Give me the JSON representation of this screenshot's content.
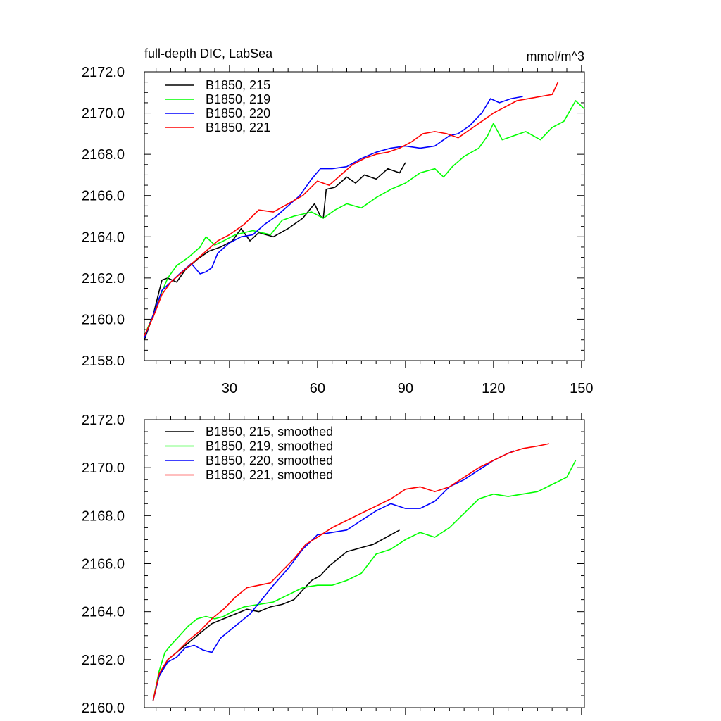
{
  "chart_data": [
    {
      "type": "line",
      "title": "full-depth DIC, LabSea",
      "units": "mmol/m^3",
      "xlim": [
        1,
        151
      ],
      "ylim": [
        2158,
        2172
      ],
      "x_ticks": [
        30,
        60,
        90,
        120,
        150
      ],
      "x_tick_labels": [
        "30",
        "60",
        "90",
        "120",
        "150"
      ],
      "y_ticks": [
        2158,
        2160,
        2162,
        2164,
        2166,
        2168,
        2170,
        2172
      ],
      "y_tick_labels": [
        "2158.0",
        "2160.0",
        "2162.0",
        "2164.0",
        "2166.0",
        "2168.0",
        "2170.0",
        "2172.0"
      ],
      "legend_position": "top-left",
      "series": [
        {
          "name": "B1850, 215",
          "color": "#000000",
          "x": [
            1,
            4,
            7,
            9,
            12,
            15,
            19,
            23,
            27,
            31,
            34,
            37,
            40,
            45,
            50,
            55,
            59,
            61,
            62,
            63,
            66,
            70,
            73,
            76,
            80,
            84,
            88,
            90
          ],
          "y": [
            2159.0,
            2160.2,
            2161.9,
            2162.0,
            2161.8,
            2162.4,
            2162.9,
            2163.3,
            2163.5,
            2163.8,
            2164.4,
            2163.8,
            2164.2,
            2164.0,
            2164.4,
            2164.9,
            2165.6,
            2165.0,
            2164.9,
            2166.3,
            2166.4,
            2166.9,
            2166.6,
            2167.0,
            2166.8,
            2167.3,
            2167.1,
            2167.6
          ]
        },
        {
          "name": "B1850, 219",
          "color": "#00ff00",
          "x": [
            1,
            4,
            6,
            9,
            12,
            16,
            20,
            22,
            25,
            28,
            32,
            38,
            44,
            48,
            52,
            58,
            62,
            66,
            70,
            75,
            80,
            85,
            90,
            95,
            100,
            103,
            106,
            110,
            115,
            118,
            120,
            123,
            127,
            131,
            136,
            140,
            144,
            148,
            151
          ],
          "y": [
            2159.2,
            2160.2,
            2161.0,
            2162.0,
            2162.6,
            2163.0,
            2163.5,
            2164.0,
            2163.6,
            2163.8,
            2164.1,
            2164.3,
            2164.1,
            2164.8,
            2165.0,
            2165.2,
            2164.9,
            2165.3,
            2165.6,
            2165.4,
            2165.9,
            2166.3,
            2166.6,
            2167.1,
            2167.3,
            2166.9,
            2167.4,
            2167.9,
            2168.3,
            2168.9,
            2169.5,
            2168.7,
            2168.9,
            2169.1,
            2168.7,
            2169.3,
            2169.6,
            2170.6,
            2170.2
          ]
        },
        {
          "name": "B1850, 220",
          "color": "#0000ff",
          "x": [
            1,
            4,
            7,
            10,
            13,
            17,
            20,
            22,
            24,
            26,
            30,
            34,
            38,
            42,
            46,
            50,
            54,
            58,
            61,
            65,
            70,
            75,
            80,
            85,
            90,
            95,
            100,
            105,
            108,
            112,
            116,
            119,
            122,
            126,
            130
          ],
          "y": [
            2159.1,
            2160.2,
            2161.4,
            2161.8,
            2162.2,
            2162.7,
            2162.2,
            2162.3,
            2162.5,
            2163.2,
            2163.7,
            2164.0,
            2164.1,
            2164.6,
            2165.0,
            2165.5,
            2166.0,
            2166.8,
            2167.3,
            2167.3,
            2167.4,
            2167.8,
            2168.1,
            2168.3,
            2168.4,
            2168.3,
            2168.4,
            2168.9,
            2169.0,
            2169.4,
            2170.0,
            2170.7,
            2170.5,
            2170.7,
            2170.8
          ]
        },
        {
          "name": "B1850, 221",
          "color": "#ff0000",
          "x": [
            1,
            4,
            7,
            10,
            14,
            18,
            22,
            26,
            30,
            35,
            40,
            45,
            50,
            55,
            60,
            64,
            68,
            72,
            76,
            80,
            84,
            88,
            92,
            96,
            100,
            104,
            108,
            112,
            116,
            120,
            124,
            128,
            132,
            136,
            140,
            142
          ],
          "y": [
            2159.2,
            2160.1,
            2161.2,
            2161.8,
            2162.3,
            2162.8,
            2163.3,
            2163.8,
            2164.1,
            2164.6,
            2165.3,
            2165.2,
            2165.6,
            2166.0,
            2166.7,
            2166.5,
            2167.0,
            2167.5,
            2167.8,
            2168.0,
            2168.1,
            2168.3,
            2168.6,
            2169.0,
            2169.1,
            2169.0,
            2168.8,
            2169.2,
            2169.6,
            2170.0,
            2170.3,
            2170.6,
            2170.7,
            2170.8,
            2170.9,
            2171.5
          ]
        }
      ]
    },
    {
      "type": "line",
      "title": "",
      "xlim": [
        1,
        151
      ],
      "ylim": [
        2160,
        2172
      ],
      "x_ticks": [
        30,
        60,
        90,
        120,
        150
      ],
      "y_ticks": [
        2160,
        2162,
        2164,
        2166,
        2168,
        2170,
        2172
      ],
      "y_tick_labels": [
        "2160.0",
        "2162.0",
        "2164.0",
        "2166.0",
        "2168.0",
        "2170.0",
        "2172.0"
      ],
      "legend_position": "top-left",
      "series": [
        {
          "name": "B1850, 215, smoothed",
          "color": "#000000",
          "x": [
            4,
            6,
            9,
            12,
            16,
            20,
            24,
            28,
            32,
            36,
            40,
            44,
            48,
            52,
            55,
            58,
            61,
            64,
            67,
            70,
            73,
            76,
            79,
            82,
            85,
            88
          ],
          "y": [
            2160.3,
            2161.3,
            2162.0,
            2162.3,
            2162.7,
            2163.1,
            2163.5,
            2163.7,
            2163.9,
            2164.1,
            2164.0,
            2164.2,
            2164.3,
            2164.5,
            2164.9,
            2165.3,
            2165.5,
            2165.9,
            2166.2,
            2166.5,
            2166.6,
            2166.7,
            2166.8,
            2167.0,
            2167.2,
            2167.4
          ]
        },
        {
          "name": "B1850, 219, smoothed",
          "color": "#00ff00",
          "x": [
            4,
            6,
            8,
            10,
            13,
            16,
            19,
            22,
            25,
            28,
            31,
            35,
            40,
            45,
            50,
            55,
            60,
            65,
            70,
            75,
            80,
            85,
            90,
            95,
            100,
            105,
            110,
            115,
            120,
            125,
            130,
            135,
            140,
            145,
            148
          ],
          "y": [
            2160.3,
            2161.5,
            2162.3,
            2162.6,
            2163.0,
            2163.4,
            2163.7,
            2163.8,
            2163.7,
            2163.8,
            2164.0,
            2164.2,
            2164.3,
            2164.4,
            2164.7,
            2165.0,
            2165.1,
            2165.1,
            2165.3,
            2165.6,
            2166.4,
            2166.6,
            2167.0,
            2167.3,
            2167.1,
            2167.5,
            2168.1,
            2168.7,
            2168.9,
            2168.8,
            2168.9,
            2169.0,
            2169.3,
            2169.6,
            2170.3
          ]
        },
        {
          "name": "B1850, 220, smoothed",
          "color": "#0000ff",
          "x": [
            4,
            6,
            9,
            12,
            15,
            18,
            21,
            24,
            27,
            30,
            33,
            37,
            41,
            45,
            50,
            55,
            60,
            65,
            70,
            75,
            80,
            85,
            90,
            95,
            100,
            105,
            110,
            115,
            120,
            125,
            127
          ],
          "y": [
            2160.3,
            2161.3,
            2161.9,
            2162.1,
            2162.5,
            2162.6,
            2162.4,
            2162.3,
            2162.9,
            2163.2,
            2163.5,
            2163.9,
            2164.5,
            2165.1,
            2165.8,
            2166.6,
            2167.2,
            2167.3,
            2167.4,
            2167.8,
            2168.2,
            2168.5,
            2168.3,
            2168.3,
            2168.6,
            2169.2,
            2169.5,
            2169.9,
            2170.3,
            2170.6,
            2170.7
          ]
        },
        {
          "name": "B1850, 221, smoothed",
          "color": "#ff0000",
          "x": [
            4,
            6,
            9,
            12,
            16,
            20,
            24,
            28,
            32,
            36,
            40,
            44,
            48,
            52,
            56,
            60,
            65,
            70,
            75,
            80,
            85,
            90,
            95,
            100,
            105,
            110,
            115,
            120,
            125,
            130,
            135,
            139
          ],
          "y": [
            2160.3,
            2161.4,
            2162.0,
            2162.3,
            2162.8,
            2163.2,
            2163.7,
            2164.1,
            2164.6,
            2165.0,
            2165.1,
            2165.2,
            2165.7,
            2166.2,
            2166.8,
            2167.1,
            2167.5,
            2167.8,
            2168.1,
            2168.4,
            2168.7,
            2169.1,
            2169.2,
            2169.0,
            2169.2,
            2169.6,
            2170.0,
            2170.3,
            2170.6,
            2170.8,
            2170.9,
            2171.0
          ]
        }
      ]
    }
  ]
}
